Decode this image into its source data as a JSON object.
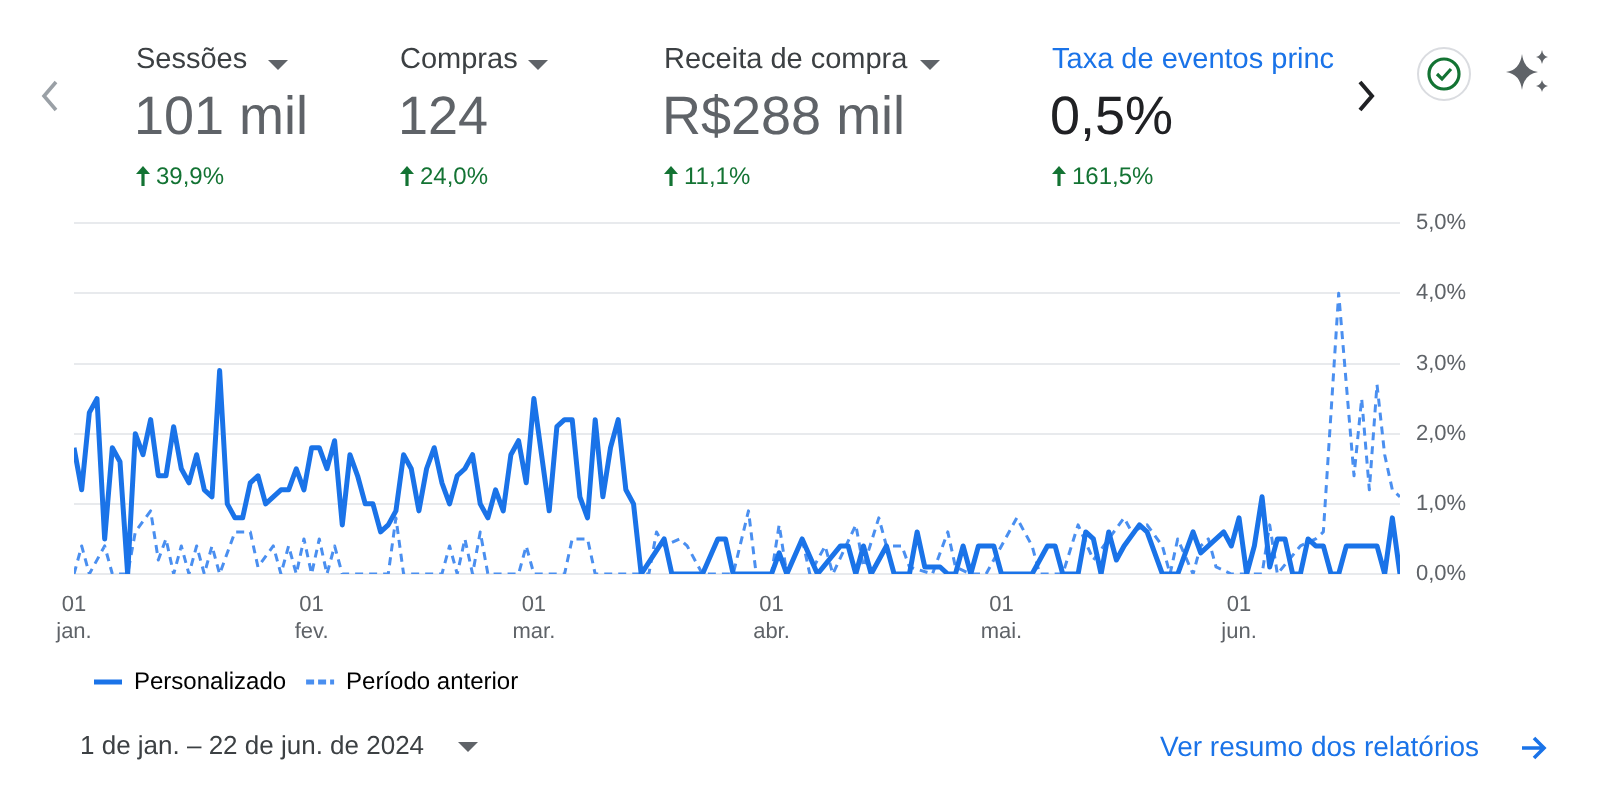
{
  "chart_data": {
    "type": "line",
    "annotations": [
      "Sessões",
      "Compras",
      "Receita de compra",
      "Taxa de eventos princ",
      "101 mil",
      "124",
      "R$288 mil",
      "0,5%",
      "39,9%",
      "24,0%",
      "11,1%",
      "161,5%",
      "1 de jan. – 22 de jun. de 2024",
      "Ver resumo dos relatórios"
    ],
    "xlim": [
      "2024-01-01",
      "2024-06-22"
    ],
    "xticks": [
      {
        "value": "2024-01-01",
        "label": "01 jan."
      },
      {
        "value": "2024-02-01",
        "label": "01 fev."
      },
      {
        "value": "2024-03-01",
        "label": "01 mar."
      },
      {
        "value": "2024-04-01",
        "label": "01 abr."
      },
      {
        "value": "2024-05-01",
        "label": "01 mai."
      },
      {
        "value": "2024-06-01",
        "label": "01 jun."
      }
    ],
    "ylim": [
      0,
      5
    ],
    "yticks": [
      {
        "value": 0,
        "label": "0,0%"
      },
      {
        "value": 1,
        "label": "1,0%"
      },
      {
        "value": 2,
        "label": "2,0%"
      },
      {
        "value": 3,
        "label": "3,0%"
      },
      {
        "value": 4,
        "label": "4,0%"
      },
      {
        "value": 5,
        "label": "5,0%"
      }
    ],
    "grid": "y",
    "legend": "bottom left",
    "series": [
      {
        "name": "Personalizado",
        "color": "#1a73e8",
        "line_style": "solid",
        "x": [
          "2024-01-01",
          "2024-01-02",
          "2024-01-03",
          "2024-01-04",
          "2024-01-05",
          "2024-01-06",
          "2024-01-07",
          "2024-01-08",
          "2024-01-09",
          "2024-01-10",
          "2024-01-11",
          "2024-01-12",
          "2024-01-13",
          "2024-01-14",
          "2024-01-15",
          "2024-01-16",
          "2024-01-17",
          "2024-01-18",
          "2024-01-19",
          "2024-01-20",
          "2024-01-21",
          "2024-01-22",
          "2024-01-23",
          "2024-01-24",
          "2024-01-25",
          "2024-01-26",
          "2024-01-27",
          "2024-01-28",
          "2024-01-29",
          "2024-01-30",
          "2024-01-31",
          "2024-02-01",
          "2024-02-02",
          "2024-02-03",
          "2024-02-04",
          "2024-02-05",
          "2024-02-06",
          "2024-02-07",
          "2024-02-08",
          "2024-02-09",
          "2024-02-10",
          "2024-02-11",
          "2024-02-12",
          "2024-02-13",
          "2024-02-14",
          "2024-02-15",
          "2024-02-16",
          "2024-02-17",
          "2024-02-18",
          "2024-02-19",
          "2024-02-20",
          "2024-02-21",
          "2024-02-22",
          "2024-02-23",
          "2024-02-24",
          "2024-02-25",
          "2024-02-26",
          "2024-02-27",
          "2024-02-28",
          "2024-02-29",
          "2024-03-01",
          "2024-03-02",
          "2024-03-03",
          "2024-03-04",
          "2024-03-05",
          "2024-03-06",
          "2024-03-07",
          "2024-03-08",
          "2024-03-09",
          "2024-03-10",
          "2024-03-11",
          "2024-03-12",
          "2024-03-13",
          "2024-03-14",
          "2024-03-15",
          "2024-03-18",
          "2024-03-19",
          "2024-03-23",
          "2024-03-25",
          "2024-03-26",
          "2024-03-27",
          "2024-04-01",
          "2024-04-02",
          "2024-04-03",
          "2024-04-05",
          "2024-04-07",
          "2024-04-10",
          "2024-04-11",
          "2024-04-12",
          "2024-04-13",
          "2024-04-14",
          "2024-04-16",
          "2024-04-17",
          "2024-04-19",
          "2024-04-20",
          "2024-04-21",
          "2024-04-23",
          "2024-04-24",
          "2024-04-25",
          "2024-04-26",
          "2024-04-27",
          "2024-04-28",
          "2024-04-30",
          "2024-05-01",
          "2024-05-05",
          "2024-05-07",
          "2024-05-08",
          "2024-05-09",
          "2024-05-11",
          "2024-05-12",
          "2024-05-13",
          "2024-05-14",
          "2024-05-15",
          "2024-05-16",
          "2024-05-17",
          "2024-05-19",
          "2024-05-20",
          "2024-05-22",
          "2024-05-24",
          "2024-05-26",
          "2024-05-27",
          "2024-05-29",
          "2024-05-30",
          "2024-05-31",
          "2024-06-01",
          "2024-06-02",
          "2024-06-03",
          "2024-06-04",
          "2024-06-05",
          "2024-06-06",
          "2024-06-07",
          "2024-06-08",
          "2024-06-09",
          "2024-06-10",
          "2024-06-11",
          "2024-06-12",
          "2024-06-13",
          "2024-06-14",
          "2024-06-15",
          "2024-06-17",
          "2024-06-19",
          "2024-06-20",
          "2024-06-21",
          "2024-06-22"
        ],
        "values": [
          1.8,
          1.2,
          2.3,
          2.5,
          0.5,
          1.8,
          1.6,
          0,
          2.0,
          1.7,
          2.2,
          1.4,
          1.4,
          2.1,
          1.5,
          1.3,
          1.7,
          1.2,
          1.1,
          2.9,
          1.0,
          0.8,
          0.8,
          1.3,
          1.4,
          1.0,
          1.1,
          1.2,
          1.2,
          1.5,
          1.2,
          1.8,
          1.8,
          1.5,
          1.9,
          0.7,
          1.7,
          1.4,
          1.0,
          1.0,
          0.6,
          0.7,
          0.9,
          1.7,
          1.5,
          0.9,
          1.5,
          1.8,
          1.3,
          1.0,
          1.4,
          1.5,
          1.7,
          1.0,
          0.8,
          1.2,
          0.9,
          1.7,
          1.9,
          1.3,
          2.5,
          1.7,
          0.9,
          2.1,
          2.2,
          2.2,
          1.1,
          0.8,
          2.2,
          1.1,
          1.8,
          2.2,
          1.2,
          1.0,
          0,
          0.5,
          0,
          0,
          0.5,
          0.5,
          0,
          0,
          0.3,
          0,
          0.5,
          0,
          0.4,
          0.4,
          0,
          0.4,
          0,
          0.4,
          0,
          0,
          0.6,
          0.1,
          0.1,
          0,
          0,
          0.4,
          0,
          0.4,
          0.4,
          0,
          0,
          0.4,
          0.4,
          0,
          0,
          0.6,
          0.5,
          0,
          0.6,
          0.2,
          0.4,
          0.7,
          0.6,
          0,
          0,
          0.6,
          0.3,
          0.5,
          0.6,
          0.4,
          0.8,
          0,
          0.4,
          1.1,
          0.1,
          0.5,
          0.5,
          0,
          0,
          0.5,
          0.4,
          0.4,
          0,
          0,
          0.4,
          0.4,
          0.4,
          0,
          0.8,
          0
        ]
      },
      {
        "name": "Período anterior",
        "color": "#4a8ff0",
        "line_style": "dashed",
        "x": [
          "2024-01-01",
          "2024-01-02",
          "2024-01-03",
          "2024-01-05",
          "2024-01-06",
          "2024-01-08",
          "2024-01-09",
          "2024-01-11",
          "2024-01-12",
          "2024-01-13",
          "2024-01-14",
          "2024-01-15",
          "2024-01-16",
          "2024-01-17",
          "2024-01-18",
          "2024-01-19",
          "2024-01-20",
          "2024-01-22",
          "2024-01-24",
          "2024-01-25",
          "2024-01-27",
          "2024-01-28",
          "2024-01-29",
          "2024-01-30",
          "2024-01-31",
          "2024-02-01",
          "2024-02-02",
          "2024-02-03",
          "2024-02-04",
          "2024-02-05",
          "2024-02-11",
          "2024-02-12",
          "2024-02-13",
          "2024-02-18",
          "2024-02-19",
          "2024-02-20",
          "2024-02-21",
          "2024-02-22",
          "2024-02-23",
          "2024-02-24",
          "2024-02-28",
          "2024-02-29",
          "2024-03-01",
          "2024-03-05",
          "2024-03-06",
          "2024-03-08",
          "2024-03-09",
          "2024-03-16",
          "2024-03-17",
          "2024-03-18",
          "2024-03-20",
          "2024-03-21",
          "2024-03-23",
          "2024-03-27",
          "2024-03-29",
          "2024-03-30",
          "2024-04-01",
          "2024-04-02",
          "2024-04-03",
          "2024-04-05",
          "2024-04-06",
          "2024-04-08",
          "2024-04-09",
          "2024-04-12",
          "2024-04-13",
          "2024-04-15",
          "2024-04-16",
          "2024-04-18",
          "2024-04-19",
          "2024-04-22",
          "2024-04-24",
          "2024-04-25",
          "2024-04-27",
          "2024-04-29",
          "2024-05-01",
          "2024-05-03",
          "2024-05-05",
          "2024-05-06",
          "2024-05-09",
          "2024-05-11",
          "2024-05-13",
          "2024-05-15",
          "2024-05-17",
          "2024-05-18",
          "2024-05-20",
          "2024-05-22",
          "2024-05-23",
          "2024-05-24",
          "2024-05-26",
          "2024-05-27",
          "2024-05-28",
          "2024-05-29",
          "2024-05-31",
          "2024-06-04",
          "2024-06-05",
          "2024-06-06",
          "2024-06-09",
          "2024-06-11",
          "2024-06-12",
          "2024-06-14",
          "2024-06-16",
          "2024-06-17",
          "2024-06-18",
          "2024-06-19",
          "2024-06-20",
          "2024-06-21",
          "2024-06-22"
        ],
        "values": [
          0,
          0.4,
          0,
          0.4,
          0,
          0,
          0.6,
          0.9,
          0.2,
          0.5,
          0,
          0.4,
          0,
          0.4,
          0,
          0.4,
          0,
          0.6,
          0.6,
          0.1,
          0.4,
          0,
          0.4,
          0,
          0.5,
          0,
          0.5,
          0,
          0.4,
          0,
          0,
          0.8,
          0,
          0,
          0.4,
          0,
          0.5,
          0,
          0.6,
          0,
          0,
          0.4,
          0,
          0,
          0.5,
          0.5,
          0,
          0,
          0.6,
          0.4,
          0.5,
          0.4,
          0,
          0,
          0.9,
          0,
          0,
          0.7,
          0,
          0.5,
          0,
          0.4,
          0,
          0.7,
          0.1,
          0.8,
          0.4,
          0.4,
          0.1,
          0,
          0.6,
          0.1,
          0,
          0,
          0.4,
          0.8,
          0.4,
          0,
          0,
          0.7,
          0.2,
          0.5,
          0.8,
          0.6,
          0.7,
          0.4,
          0,
          0.5,
          0,
          0.4,
          0.5,
          0.1,
          0,
          0,
          0.7,
          0,
          0.4,
          0.5,
          0.6,
          4.0,
          1.4,
          2.5,
          1.2,
          2.7,
          1.7,
          1.2,
          1.1
        ]
      }
    ]
  }
}
